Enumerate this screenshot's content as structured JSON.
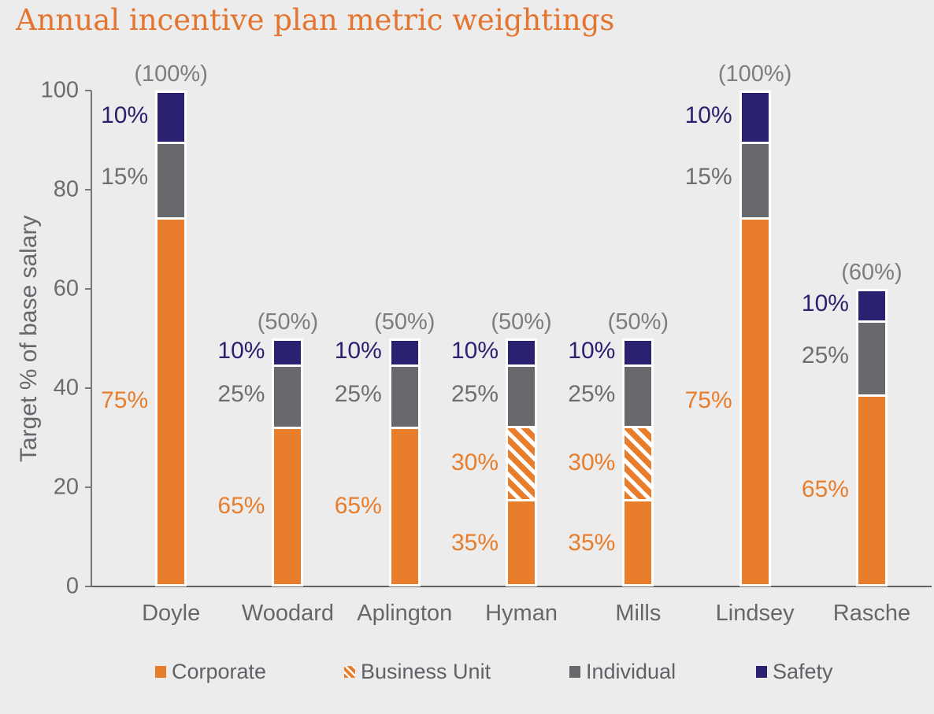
{
  "chart_data": {
    "type": "bar",
    "stacked": true,
    "title": "Annual incentive plan metric weightings",
    "ylabel": "Target % of base salary",
    "xlabel": "",
    "ylim": [
      0,
      100
    ],
    "yticks": [
      0,
      20,
      40,
      60,
      80,
      100
    ],
    "grid": false,
    "legend_position": "bottom",
    "categories": [
      "Doyle",
      "Woodard",
      "Aplington",
      "Hyman",
      "Mills",
      "Lindsey",
      "Rasche"
    ],
    "total_labels": [
      "(100%)",
      "(50%)",
      "(50%)",
      "(50%)",
      "(50%)",
      "(100%)",
      "(60%)"
    ],
    "total_target_pct_of_salary": [
      100,
      50,
      50,
      50,
      50,
      100,
      60
    ],
    "series": [
      {
        "name": "Corporate",
        "pattern": "solid",
        "color": "#E87D2B",
        "label_color": "#E87D2B",
        "values_pct_of_salary": [
          75,
          32.5,
          32.5,
          17.5,
          17.5,
          75,
          39
        ],
        "segment_labels": [
          "75%",
          "65%",
          "65%",
          "35%",
          "35%",
          "75%",
          "65%"
        ]
      },
      {
        "name": "Business Unit",
        "pattern": "hatch",
        "color": "#E87D2B",
        "label_color": "#E87D2B",
        "values_pct_of_salary": [
          0,
          0,
          0,
          15,
          15,
          0,
          0
        ],
        "segment_labels": [
          "",
          "",
          "",
          "30%",
          "30%",
          "",
          ""
        ]
      },
      {
        "name": "Individual",
        "pattern": "solid",
        "color": "#68696D",
        "label_color": "#6E6E73",
        "values_pct_of_salary": [
          15,
          12.5,
          12.5,
          12.5,
          12.5,
          15,
          15
        ],
        "segment_labels": [
          "15%",
          "25%",
          "25%",
          "25%",
          "25%",
          "15%",
          "25%"
        ]
      },
      {
        "name": "Safety",
        "pattern": "solid",
        "color": "#2A2170",
        "label_color": "#2A2170",
        "values_pct_of_salary": [
          10,
          5,
          5,
          5,
          5,
          10,
          6
        ],
        "segment_labels": [
          "10%",
          "10%",
          "10%",
          "10%",
          "10%",
          "10%",
          "10%"
        ]
      }
    ],
    "legend": [
      "Corporate",
      "Business Unit",
      "Individual",
      "Safety"
    ]
  },
  "style_colors": {
    "background": "#ECECEC",
    "title": "#E4752F",
    "axis_line": "#77777B",
    "axis_text": "#6B6C71",
    "total_label": "#7C7C81",
    "white_separator": "#FFFFFF"
  }
}
